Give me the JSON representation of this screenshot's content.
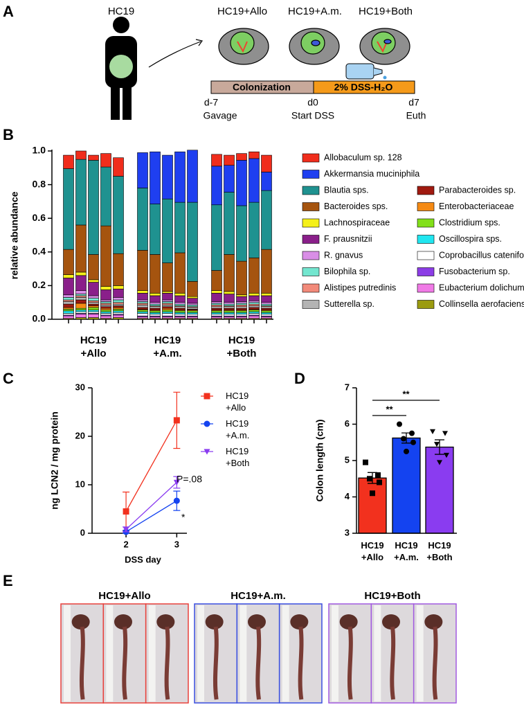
{
  "panel_labels": [
    "A",
    "B",
    "C",
    "D",
    "E"
  ],
  "diagram": {
    "donor": "HC19",
    "groups": [
      "HC19+Allo",
      "HC19+A.m.",
      "HC19+Both"
    ],
    "phase_1": "Colonization",
    "phase_2": "2% DSS-H₂O",
    "timepoints": [
      {
        "day": "d-7",
        "event": "Gavage"
      },
      {
        "day": "d0",
        "event": "Start DSS"
      },
      {
        "day": "d7",
        "event": "Euth"
      }
    ]
  },
  "chart_data": [
    {
      "type": "stacked-bar",
      "y_label": "relative abundance",
      "ylim": [
        0,
        1
      ],
      "yticks": [
        {
          "value": 0,
          "label": "0.0"
        },
        {
          "value": 0.2,
          "label": "0.2"
        },
        {
          "value": 0.4,
          "label": "0.4"
        },
        {
          "value": 0.6,
          "label": "0.6"
        },
        {
          "value": 0.8,
          "label": "0.8"
        },
        {
          "value": 1,
          "label": "1.0"
        }
      ],
      "groups": [
        "HC19 +Allo",
        "HC19 +A.m.",
        "HC19 +Both"
      ],
      "categories": [
        null,
        null,
        null,
        null,
        null,
        null,
        null,
        null,
        null,
        null,
        null,
        null,
        null,
        null,
        null
      ],
      "series": [
        {
          "name": "Allobaculum sp. 128",
          "color": "#f02d1c",
          "values": [
            0.08,
            0.05,
            0.03,
            0.08,
            0.11,
            0,
            0,
            0,
            0,
            0,
            0.07,
            0.06,
            0.04,
            0.04,
            0.1
          ]
        },
        {
          "name": "Akkermansia muciniphila",
          "color": "#1f3ff0",
          "values": [
            0,
            0,
            0,
            0,
            0,
            0.21,
            0.31,
            0.26,
            0.3,
            0.31,
            0.23,
            0.16,
            0.27,
            0.26,
            0.11
          ]
        },
        {
          "name": "Blautia sps.",
          "color": "#1f9290",
          "values": [
            0.48,
            0.39,
            0.56,
            0.35,
            0.46,
            0.37,
            0.3,
            0.38,
            0.3,
            0.47,
            0.39,
            0.37,
            0.33,
            0.33,
            0.35
          ]
        },
        {
          "name": "Bacteroides sps.",
          "color": "#a5540f",
          "values": [
            0.15,
            0.28,
            0.15,
            0.36,
            0.19,
            0.24,
            0.23,
            0.17,
            0.24,
            0.09,
            0.12,
            0.22,
            0.2,
            0.21,
            0.26
          ]
        },
        {
          "name": "Lachnospiraceae",
          "color": "#f5f01a",
          "values": [
            0.02,
            0.02,
            0.015,
            0.02,
            0.02,
            0.015,
            0.015,
            0.01,
            0.015,
            0.01,
            0.015,
            0.015,
            0.01,
            0.015,
            0.015
          ]
        },
        {
          "name": "F. prausnitzii",
          "color": "#8a1f8a",
          "values": [
            0.1,
            0.09,
            0.08,
            0.06,
            0.05,
            0.04,
            0.04,
            0.04,
            0.04,
            0.03,
            0.05,
            0.05,
            0.03,
            0.03,
            0.04
          ]
        },
        {
          "name": "R. gnavus",
          "color": "#d98ee6",
          "values": [
            0.015,
            0.02,
            0.015,
            0.01,
            0.015,
            0.01,
            0.01,
            0.01,
            0.01,
            0.01,
            0.01,
            0.01,
            0.01,
            0.01,
            0.01
          ]
        },
        {
          "name": "Bilophila sp.",
          "color": "#73e6cf",
          "values": [
            0.015,
            0.01,
            0.015,
            0.01,
            0.015,
            0.01,
            0.01,
            0.01,
            0.01,
            0.01,
            0.01,
            0.01,
            0.01,
            0.01,
            0.01
          ]
        },
        {
          "name": "Alistipes putredinis",
          "color": "#f28a7a",
          "values": [
            0.01,
            0.01,
            0.01,
            0.01,
            0.01,
            0.01,
            0.005,
            0.01,
            0.005,
            0.005,
            0.01,
            0.005,
            0.01,
            0.01,
            0.005
          ]
        },
        {
          "name": "Sutterella sp.",
          "color": "#b4b4b4",
          "values": [
            0.015,
            0.015,
            0.01,
            0.01,
            0.01,
            0.015,
            0.01,
            0.01,
            0.01,
            0.01,
            0.01,
            0.01,
            0.01,
            0.01,
            0.01
          ]
        },
        {
          "name": "Parabacteroides sp.",
          "color": "#a01a10",
          "values": [
            0.02,
            0.02,
            0.01,
            0.01,
            0.01,
            0.01,
            0.01,
            0.01,
            0.01,
            0.005,
            0.01,
            0.01,
            0.01,
            0.01,
            0.01
          ]
        },
        {
          "name": "Enterobacteriaceae",
          "color": "#f58a14",
          "values": [
            0.01,
            0.03,
            0.01,
            0.01,
            0.01,
            0.005,
            0.005,
            0.01,
            0.005,
            0.005,
            0.005,
            0.005,
            0.005,
            0.005,
            0.005
          ]
        },
        {
          "name": "Clostridium sps.",
          "color": "#82e01a",
          "values": [
            0.01,
            0.01,
            0.015,
            0.01,
            0.01,
            0.01,
            0.01,
            0.01,
            0.01,
            0.01,
            0.01,
            0.01,
            0.01,
            0.01,
            0.01
          ]
        },
        {
          "name": "Oscillospira sps.",
          "color": "#20e6f0",
          "values": [
            0.015,
            0.01,
            0.01,
            0.01,
            0.01,
            0.01,
            0.01,
            0.01,
            0.01,
            0.01,
            0.01,
            0.01,
            0.01,
            0.01,
            0.01
          ]
        },
        {
          "name": "Coprobacillus cateniformis",
          "color": "#ffffff",
          "values": [
            0.01,
            0.01,
            0.01,
            0.01,
            0.01,
            0.015,
            0.01,
            0.015,
            0.01,
            0.01,
            0.01,
            0.01,
            0.01,
            0.01,
            0.01
          ]
        },
        {
          "name": "Fusobacterium sp.",
          "color": "#8c3de6",
          "values": [
            0.005,
            0.005,
            0.005,
            0.005,
            0.005,
            0.005,
            0.005,
            0.005,
            0.005,
            0.005,
            0.005,
            0.005,
            0.005,
            0.005,
            0.005
          ]
        },
        {
          "name": "Eubacterium dolichum",
          "color": "#f07ae6",
          "values": [
            0.015,
            0.02,
            0.02,
            0.015,
            0.015,
            0.01,
            0.01,
            0.01,
            0.01,
            0.01,
            0.01,
            0.01,
            0.01,
            0.015,
            0.01
          ]
        },
        {
          "name": "Collinsella aerofaciens",
          "color": "#9b9b10",
          "values": [
            0.005,
            0.01,
            0.01,
            0.005,
            0.01,
            0.005,
            0.005,
            0.005,
            0.005,
            0.005,
            0.005,
            0.005,
            0.005,
            0.005,
            0.005
          ]
        }
      ]
    },
    {
      "type": "line",
      "x_label": "DSS day",
      "y_label": "ng LCN2 / mg protein",
      "x": [
        2,
        3
      ],
      "xlim": [
        1.33,
        3.2
      ],
      "xticks": [
        2,
        3
      ],
      "ylim": [
        0,
        30
      ],
      "yticks": [
        0,
        10,
        20,
        30
      ],
      "series": [
        {
          "name": "HC19 +Allo",
          "color": "#f2311e",
          "marker": "square",
          "values": [
            4.5,
            23.3
          ],
          "errors": [
            4,
            5.8
          ]
        },
        {
          "name": "HC19 +A.m.",
          "color": "#1443f0",
          "marker": "circle",
          "values": [
            0.3,
            6.7
          ],
          "errors": [
            0.3,
            2
          ]
        },
        {
          "name": "HC19 +Both",
          "color": "#8a3cf0",
          "marker": "triangle-down",
          "values": [
            0.8,
            10.5
          ],
          "errors": [
            0.5,
            1.2
          ]
        }
      ],
      "annotations": [
        "P=.08",
        "*"
      ]
    },
    {
      "type": "bar",
      "y_label": "Colon length (cm)",
      "categories": [
        "HC19 +Allo",
        "HC19 +A.m.",
        "HC19 +Both"
      ],
      "colors": [
        "#f2311e",
        "#1443f0",
        "#8a3cf0"
      ],
      "markers": [
        "square",
        "circle",
        "triangle-down"
      ],
      "values": [
        4.52,
        5.62,
        5.37
      ],
      "errors": [
        0.15,
        0.14,
        0.2
      ],
      "points": [
        [
          4.95,
          4.6,
          4.5,
          4.4,
          4.1
        ],
        [
          6,
          5.75,
          5.6,
          5.5,
          5.25
        ],
        [
          5.8,
          5.75,
          5.45,
          5.15,
          4.95
        ]
      ],
      "ylim": [
        3,
        7
      ],
      "yticks": [
        3,
        4,
        5,
        6,
        7
      ],
      "annotations": [
        "**",
        "**"
      ]
    }
  ],
  "photos": {
    "groups": [
      {
        "title": "HC19+Allo",
        "color": "#e8413b"
      },
      {
        "title": "HC19+A.m.",
        "color": "#3a4ee0"
      },
      {
        "title": "HC19+Both",
        "color": "#a25ae0"
      }
    ]
  }
}
